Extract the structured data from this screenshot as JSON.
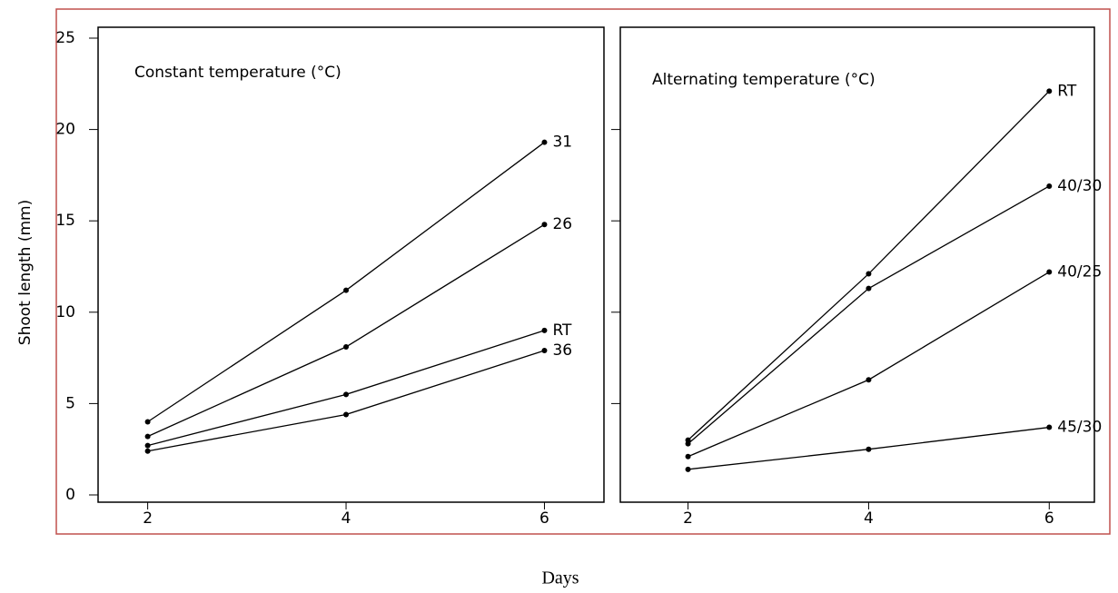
{
  "y_label": "Shoot length (mm)",
  "x_label": "Days",
  "chart_data": [
    {
      "type": "line",
      "title": "Constant temperature (°C)",
      "x": [
        2,
        4,
        6
      ],
      "xlim": [
        1.5,
        6.6
      ],
      "xticks": [
        2,
        4,
        6
      ],
      "ylim": [
        0,
        25
      ],
      "yticks": [
        0,
        5,
        10,
        15,
        20,
        25
      ],
      "series": [
        {
          "name": "31",
          "color": "#000000",
          "values": [
            4.0,
            11.2,
            19.3
          ]
        },
        {
          "name": "26",
          "color": "#000000",
          "values": [
            3.2,
            8.1,
            14.8
          ]
        },
        {
          "name": "RT",
          "color": "#000000",
          "values": [
            2.7,
            5.5,
            9.0
          ]
        },
        {
          "name": "36",
          "color": "#000000",
          "values": [
            2.4,
            4.4,
            7.9
          ]
        }
      ]
    },
    {
      "type": "line",
      "title": "Alternating temperature (°C)",
      "x": [
        2,
        4,
        6
      ],
      "xlim": [
        1.25,
        6.5
      ],
      "xticks": [
        2,
        4,
        6
      ],
      "ylim": [
        0,
        25
      ],
      "yticks": [
        5,
        10,
        15,
        20
      ],
      "series": [
        {
          "name": "RT",
          "color": "#000000",
          "values": [
            3.0,
            12.1,
            22.1
          ]
        },
        {
          "name": "40/30",
          "color": "#000000",
          "values": [
            2.8,
            11.3,
            16.9
          ]
        },
        {
          "name": "40/25",
          "color": "#000000",
          "values": [
            2.1,
            6.3,
            12.2
          ]
        },
        {
          "name": "45/30",
          "color": "#000000",
          "values": [
            1.4,
            2.5,
            3.7
          ]
        }
      ]
    }
  ]
}
